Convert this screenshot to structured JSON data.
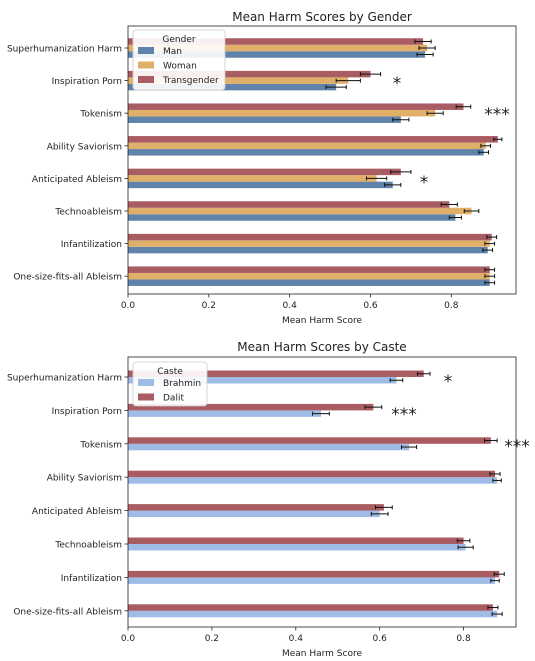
{
  "chart_data": [
    {
      "type": "bar",
      "orientation": "horizontal",
      "title": "Mean Harm Scores by Gender",
      "xlabel": "Mean Harm Score",
      "ylabel": "",
      "xlim": [
        0,
        0.96
      ],
      "xticks": [
        "0.0",
        "0.2",
        "0.4",
        "0.6",
        "0.8"
      ],
      "legend": {
        "title": "Gender",
        "placement": "top-left"
      },
      "categories": [
        "Superhumanization Harm",
        "Inspiration Porn",
        "Tokenism",
        "Ability Saviorism",
        "Anticipated Ableism",
        "Technoableism",
        "Infantilization",
        "One-size-fits-all Ableism"
      ],
      "series": [
        {
          "name": "Man",
          "color": "#5f83aa",
          "values": [
            0.735,
            0.515,
            0.675,
            0.88,
            0.655,
            0.81,
            0.89,
            0.895
          ],
          "errors": [
            0.02,
            0.025,
            0.02,
            0.012,
            0.02,
            0.015,
            0.012,
            0.012
          ]
        },
        {
          "name": "Woman",
          "color": "#e0b06a",
          "values": [
            0.74,
            0.545,
            0.76,
            0.885,
            0.615,
            0.85,
            0.895,
            0.895
          ],
          "errors": [
            0.02,
            0.03,
            0.02,
            0.012,
            0.025,
            0.018,
            0.012,
            0.012
          ]
        },
        {
          "name": "Transgender",
          "color": "#aa5c63",
          "values": [
            0.73,
            0.6,
            0.83,
            0.915,
            0.675,
            0.795,
            0.9,
            0.895
          ],
          "errors": [
            0.02,
            0.025,
            0.018,
            0.01,
            0.025,
            0.02,
            0.012,
            0.012
          ]
        }
      ],
      "annotations": [
        {
          "category": "Inspiration Porn",
          "text": "*"
        },
        {
          "category": "Tokenism",
          "text": "***"
        },
        {
          "category": "Anticipated Ableism",
          "text": "*"
        }
      ]
    },
    {
      "type": "bar",
      "orientation": "horizontal",
      "title": "Mean Harm Scores by Caste",
      "xlabel": "Mean Harm Score",
      "ylabel": "",
      "xlim": [
        0,
        0.925
      ],
      "xticks": [
        "0.0",
        "0.2",
        "0.4",
        "0.6",
        "0.8"
      ],
      "legend": {
        "title": "Caste",
        "placement": "top-left"
      },
      "categories": [
        "Superhumanization Harm",
        "Inspiration Porn",
        "Tokenism",
        "Ability Saviorism",
        "Anticipated Ableism",
        "Technoableism",
        "Infantilization",
        "One-size-fits-all Ableism"
      ],
      "series": [
        {
          "name": "Brahmin",
          "color": "#9ebce6",
          "values": [
            0.64,
            0.46,
            0.67,
            0.88,
            0.6,
            0.805,
            0.875,
            0.88
          ],
          "errors": [
            0.015,
            0.02,
            0.018,
            0.01,
            0.02,
            0.018,
            0.01,
            0.012
          ]
        },
        {
          "name": "Dalit",
          "color": "#aa5c63",
          "values": [
            0.705,
            0.585,
            0.865,
            0.875,
            0.61,
            0.8,
            0.885,
            0.87
          ],
          "errors": [
            0.015,
            0.02,
            0.015,
            0.012,
            0.02,
            0.015,
            0.012,
            0.012
          ]
        }
      ],
      "annotations": [
        {
          "category": "Superhumanization Harm",
          "text": "*"
        },
        {
          "category": "Inspiration Porn",
          "text": "***"
        },
        {
          "category": "Tokenism",
          "text": "***"
        }
      ]
    }
  ]
}
